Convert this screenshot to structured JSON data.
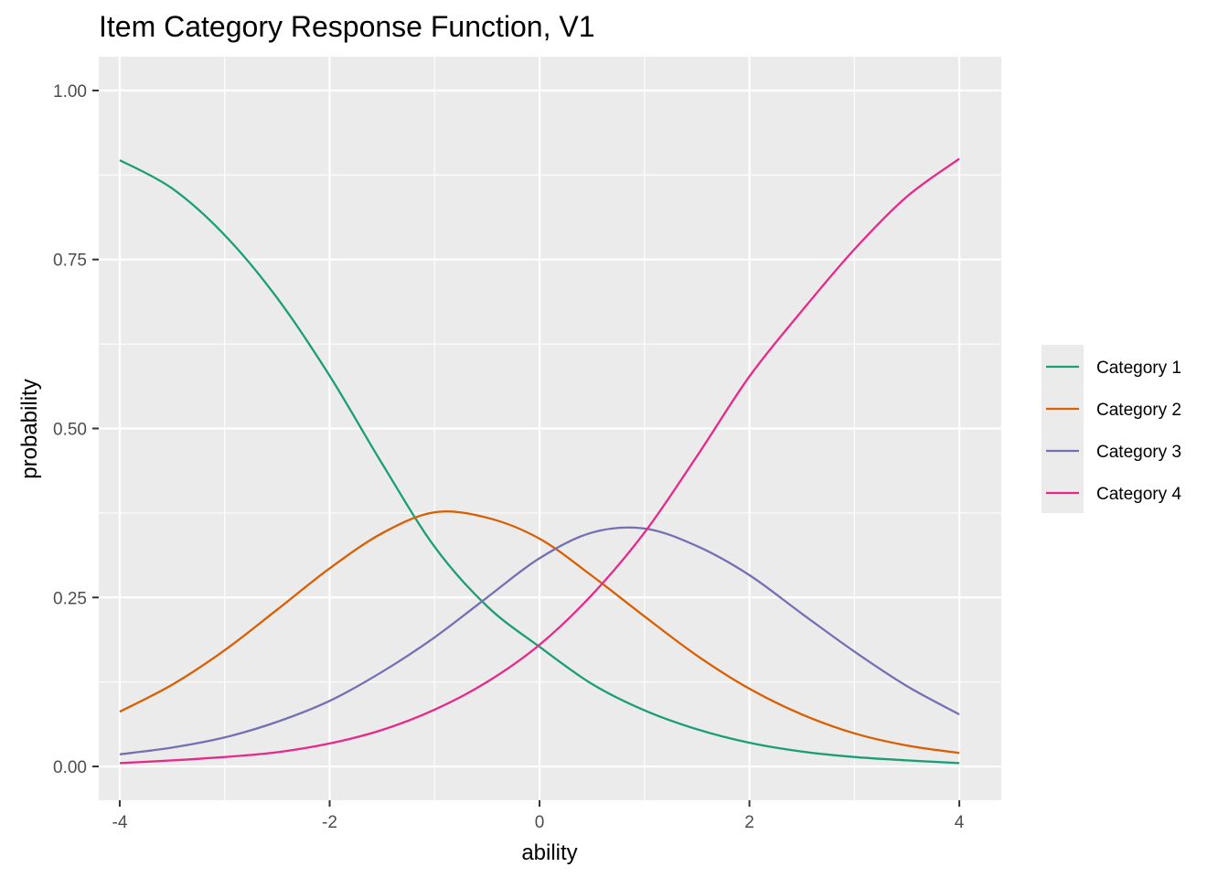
{
  "chart_data": {
    "type": "line",
    "title": "Item Category Response Function, V1",
    "xlabel": "ability",
    "ylabel": "probability",
    "xlim": [
      -4.2,
      4.4
    ],
    "ylim": [
      -0.05,
      1.05
    ],
    "x_ticks": [
      -4,
      -2,
      0,
      2,
      4
    ],
    "x_tick_labels": [
      "-4",
      "-2",
      "0",
      "2",
      "4"
    ],
    "y_ticks": [
      0,
      0.25,
      0.5,
      0.75,
      1
    ],
    "y_tick_labels": [
      "0.00",
      "0.25",
      "0.50",
      "0.75",
      "1.00"
    ],
    "grid": true,
    "legend_position": "right",
    "x": [
      -4,
      -3.5,
      -3,
      -2.5,
      -2,
      -1.5,
      -1,
      -0.5,
      0,
      0.5,
      1,
      1.5,
      2,
      2.5,
      3,
      3.5,
      4
    ],
    "series": [
      {
        "name": "Category 1",
        "color": "#1b9e77",
        "values": [
          0.897,
          0.855,
          0.786,
          0.693,
          0.578,
          0.448,
          0.325,
          0.237,
          0.177,
          0.122,
          0.083,
          0.055,
          0.035,
          0.022,
          0.014,
          0.009,
          0.005
        ]
      },
      {
        "name": "Category 2",
        "color": "#d95f02",
        "values": [
          0.081,
          0.121,
          0.172,
          0.232,
          0.293,
          0.345,
          0.376,
          0.368,
          0.337,
          0.282,
          0.222,
          0.164,
          0.115,
          0.077,
          0.049,
          0.031,
          0.02
        ]
      },
      {
        "name": "Category 3",
        "color": "#7570b3",
        "values": [
          0.018,
          0.028,
          0.043,
          0.066,
          0.097,
          0.14,
          0.191,
          0.25,
          0.308,
          0.346,
          0.352,
          0.326,
          0.283,
          0.226,
          0.17,
          0.119,
          0.077
        ]
      },
      {
        "name": "Category 4",
        "color": "#e7298a",
        "values": [
          0.005,
          0.009,
          0.014,
          0.021,
          0.034,
          0.054,
          0.084,
          0.125,
          0.18,
          0.254,
          0.346,
          0.459,
          0.577,
          0.674,
          0.765,
          0.843,
          0.899
        ]
      }
    ]
  }
}
